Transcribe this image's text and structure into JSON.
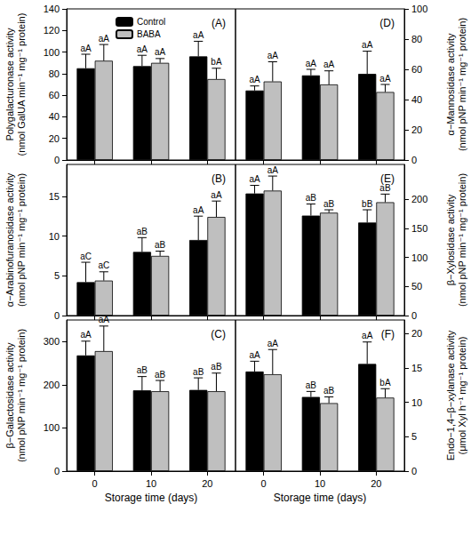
{
  "chart_data": [
    {
      "type": "bar",
      "title": "(A)",
      "ylabel": "Polygalacturonase activity\n(nmol GalUA min⁻¹ mg⁻¹ protein)",
      "categories": [
        "0",
        "10",
        "20"
      ],
      "series": [
        {
          "name": "Control",
          "color": "#000000",
          "values": [
            85,
            87,
            96
          ],
          "errors": [
            13,
            10,
            14
          ],
          "annotations": [
            "aA",
            "aA",
            "aA"
          ]
        },
        {
          "name": "BABA",
          "color": "#bfbfbf",
          "values": [
            92,
            90,
            75
          ],
          "errors": [
            15,
            4,
            10
          ],
          "annotations": [
            "aA",
            "aA",
            "bA"
          ]
        }
      ],
      "ylim": [
        0,
        140
      ],
      "yticks": [
        0,
        20,
        40,
        60,
        80,
        100,
        120,
        140
      ],
      "grid": false,
      "legend": "upper left",
      "tick_labels": "y"
    },
    {
      "type": "bar",
      "title": "(B)",
      "ylabel": "α−Arabinofuranosidase activity\n(nmol pNP min⁻¹ mg⁻¹ protein)",
      "categories": [
        "0",
        "10",
        "20"
      ],
      "series": [
        {
          "name": "Control",
          "color": "#000000",
          "values": [
            4.2,
            8.0,
            9.5
          ],
          "errors": [
            2.5,
            1.8,
            3.0
          ],
          "annotations": [
            "aC",
            "aB",
            "aA"
          ]
        },
        {
          "name": "BABA",
          "color": "#bfbfbf",
          "values": [
            4.4,
            7.5,
            12.4
          ],
          "errors": [
            1.1,
            0.6,
            2.0
          ],
          "annotations": [
            "aC",
            "aB",
            "aA"
          ]
        }
      ],
      "ylim": [
        0,
        19
      ],
      "yticks": [
        0,
        5,
        10,
        15
      ],
      "grid": false,
      "tick_labels": "y"
    },
    {
      "type": "bar",
      "title": "(C)",
      "ylabel": "β−Galactosidase activity\n(nmol pNP min⁻¹ mg⁻¹ protein)",
      "xlabel": "Storage time (days)",
      "categories": [
        "0",
        "10",
        "20"
      ],
      "series": [
        {
          "name": "Control",
          "color": "#000000",
          "values": [
            268,
            187,
            188
          ],
          "errors": [
            33,
            32,
            28
          ],
          "annotations": [
            "aA",
            "aB",
            "aB"
          ]
        },
        {
          "name": "BABA",
          "color": "#bfbfbf",
          "values": [
            278,
            185,
            185
          ],
          "errors": [
            58,
            25,
            42
          ],
          "annotations": [
            "aA",
            "aB",
            "aB"
          ]
        }
      ],
      "ylim": [
        0,
        350
      ],
      "yticks": [
        0,
        100,
        200,
        300
      ],
      "grid": false
    },
    {
      "type": "bar",
      "title": "(D)",
      "ylabel": "α−Mannosidase activity\n(nmol pNP min⁻¹ mg⁻¹ protein)",
      "categories": [
        "0",
        "10",
        "20"
      ],
      "series": [
        {
          "name": "Control",
          "color": "#000000",
          "values": [
            46,
            56,
            57
          ],
          "errors": [
            3,
            4,
            15
          ],
          "annotations": [
            "aA",
            "aA",
            "aA"
          ]
        },
        {
          "name": "BABA",
          "color": "#bfbfbf",
          "values": [
            52,
            50,
            45
          ],
          "errors": [
            13,
            9,
            5
          ],
          "annotations": [
            "aA",
            "aA",
            "aA"
          ]
        }
      ],
      "ylim": [
        0,
        100
      ],
      "yticks": [
        0,
        20,
        40,
        60,
        80,
        100
      ],
      "grid": false,
      "tick_labels": "y"
    },
    {
      "type": "bar",
      "title": "(E)",
      "ylabel": "β−Xylosidase activity\n(nmol pNP min⁻¹ mg⁻¹ protein)",
      "categories": [
        "0",
        "10",
        "20"
      ],
      "series": [
        {
          "name": "Control",
          "color": "#000000",
          "values": [
            210,
            172,
            160
          ],
          "errors": [
            14,
            20,
            22
          ],
          "annotations": [
            "aA",
            "aB",
            "bB"
          ]
        },
        {
          "name": "BABA",
          "color": "#bfbfbf",
          "values": [
            215,
            177,
            195
          ],
          "errors": [
            25,
            5,
            14
          ],
          "annotations": [
            "aA",
            "aB",
            "aB"
          ]
        }
      ],
      "ylim": [
        0,
        260
      ],
      "yticks": [
        0,
        50,
        100,
        150,
        200
      ],
      "grid": false,
      "tick_labels": "y"
    },
    {
      "type": "bar",
      "title": "(F)",
      "ylabel": "Endo−1,4−β−xylanase activity\n(μmol Xyl h⁻¹ mg⁻¹ protein)",
      "xlabel": "Storage time (days)",
      "categories": [
        "0",
        "10",
        "20"
      ],
      "series": [
        {
          "name": "Control",
          "color": "#000000",
          "values": [
            14.5,
            10.8,
            15.6
          ],
          "errors": [
            1.5,
            0.8,
            3.2
          ],
          "annotations": [
            "aA",
            "aB",
            "aA"
          ]
        },
        {
          "name": "BABA",
          "color": "#bfbfbf",
          "values": [
            14.1,
            9.9,
            10.7
          ],
          "errors": [
            3.6,
            0.9,
            1.3
          ],
          "annotations": [
            "aA",
            "aB",
            "bA"
          ]
        }
      ],
      "ylim": [
        0,
        22
      ],
      "yticks": [
        0,
        5,
        10,
        15,
        20
      ],
      "grid": false
    }
  ]
}
